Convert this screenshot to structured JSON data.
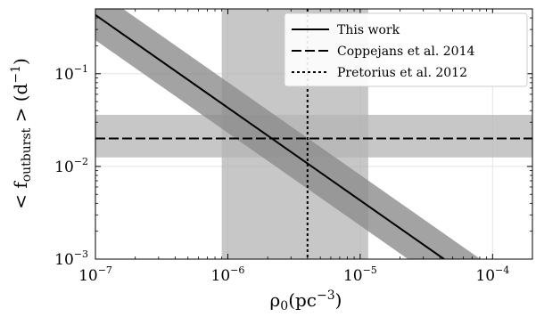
{
  "chart_data": {
    "type": "line",
    "title": "",
    "xlabel": {
      "base": "ρ",
      "sub": "0",
      "unit": "(pc",
      "sup": "−3",
      "close": ")"
    },
    "ylabel": {
      "prefix": "< f",
      "sub": "outburst",
      "suffix": " > (d",
      "sup": "−1",
      "close": ")"
    },
    "xscale": "log",
    "yscale": "log",
    "xlim": [
      1e-07,
      0.0002
    ],
    "ylim": [
      0.001,
      0.5
    ],
    "x_ticks": [
      {
        "base": "10",
        "exp": "−7",
        "value": 1e-07
      },
      {
        "base": "10",
        "exp": "−6",
        "value": 1e-06
      },
      {
        "base": "10",
        "exp": "−5",
        "value": 1e-05
      },
      {
        "base": "10",
        "exp": "−4",
        "value": 0.0001
      }
    ],
    "y_ticks": [
      {
        "base": "10",
        "exp": "−3",
        "value": 0.001
      },
      {
        "base": "10",
        "exp": "−2",
        "value": 0.01
      },
      {
        "base": "10",
        "exp": "−1",
        "value": 0.1
      }
    ],
    "grid": true,
    "legend_position": "top-right",
    "series": [
      {
        "name": "This work",
        "style": "solid",
        "points": [
          [
            1e-07,
            0.43
          ],
          [
            4.3e-05,
            0.001
          ]
        ],
        "band_lower": [
          [
            1e-07,
            0.23
          ],
          [
            2.3e-05,
            0.001
          ]
        ],
        "band_upper": [
          [
            1e-07,
            0.81
          ],
          [
            8.1e-05,
            0.001
          ]
        ],
        "color": "#000000",
        "band_color": "#8c8c8c"
      },
      {
        "name": "Coppejans et al. 2014",
        "style": "dashed",
        "orientation": "horizontal",
        "value": 0.02,
        "band": [
          0.0125,
          0.036
        ],
        "color": "#000000",
        "band_color": "#b4b4b4"
      },
      {
        "name": "Pretorius et al. 2012",
        "style": "dotted",
        "orientation": "vertical",
        "value": 4e-06,
        "band": [
          9e-07,
          1.15e-05
        ],
        "color": "#000000",
        "band_color": "#b4b4b4"
      }
    ]
  }
}
